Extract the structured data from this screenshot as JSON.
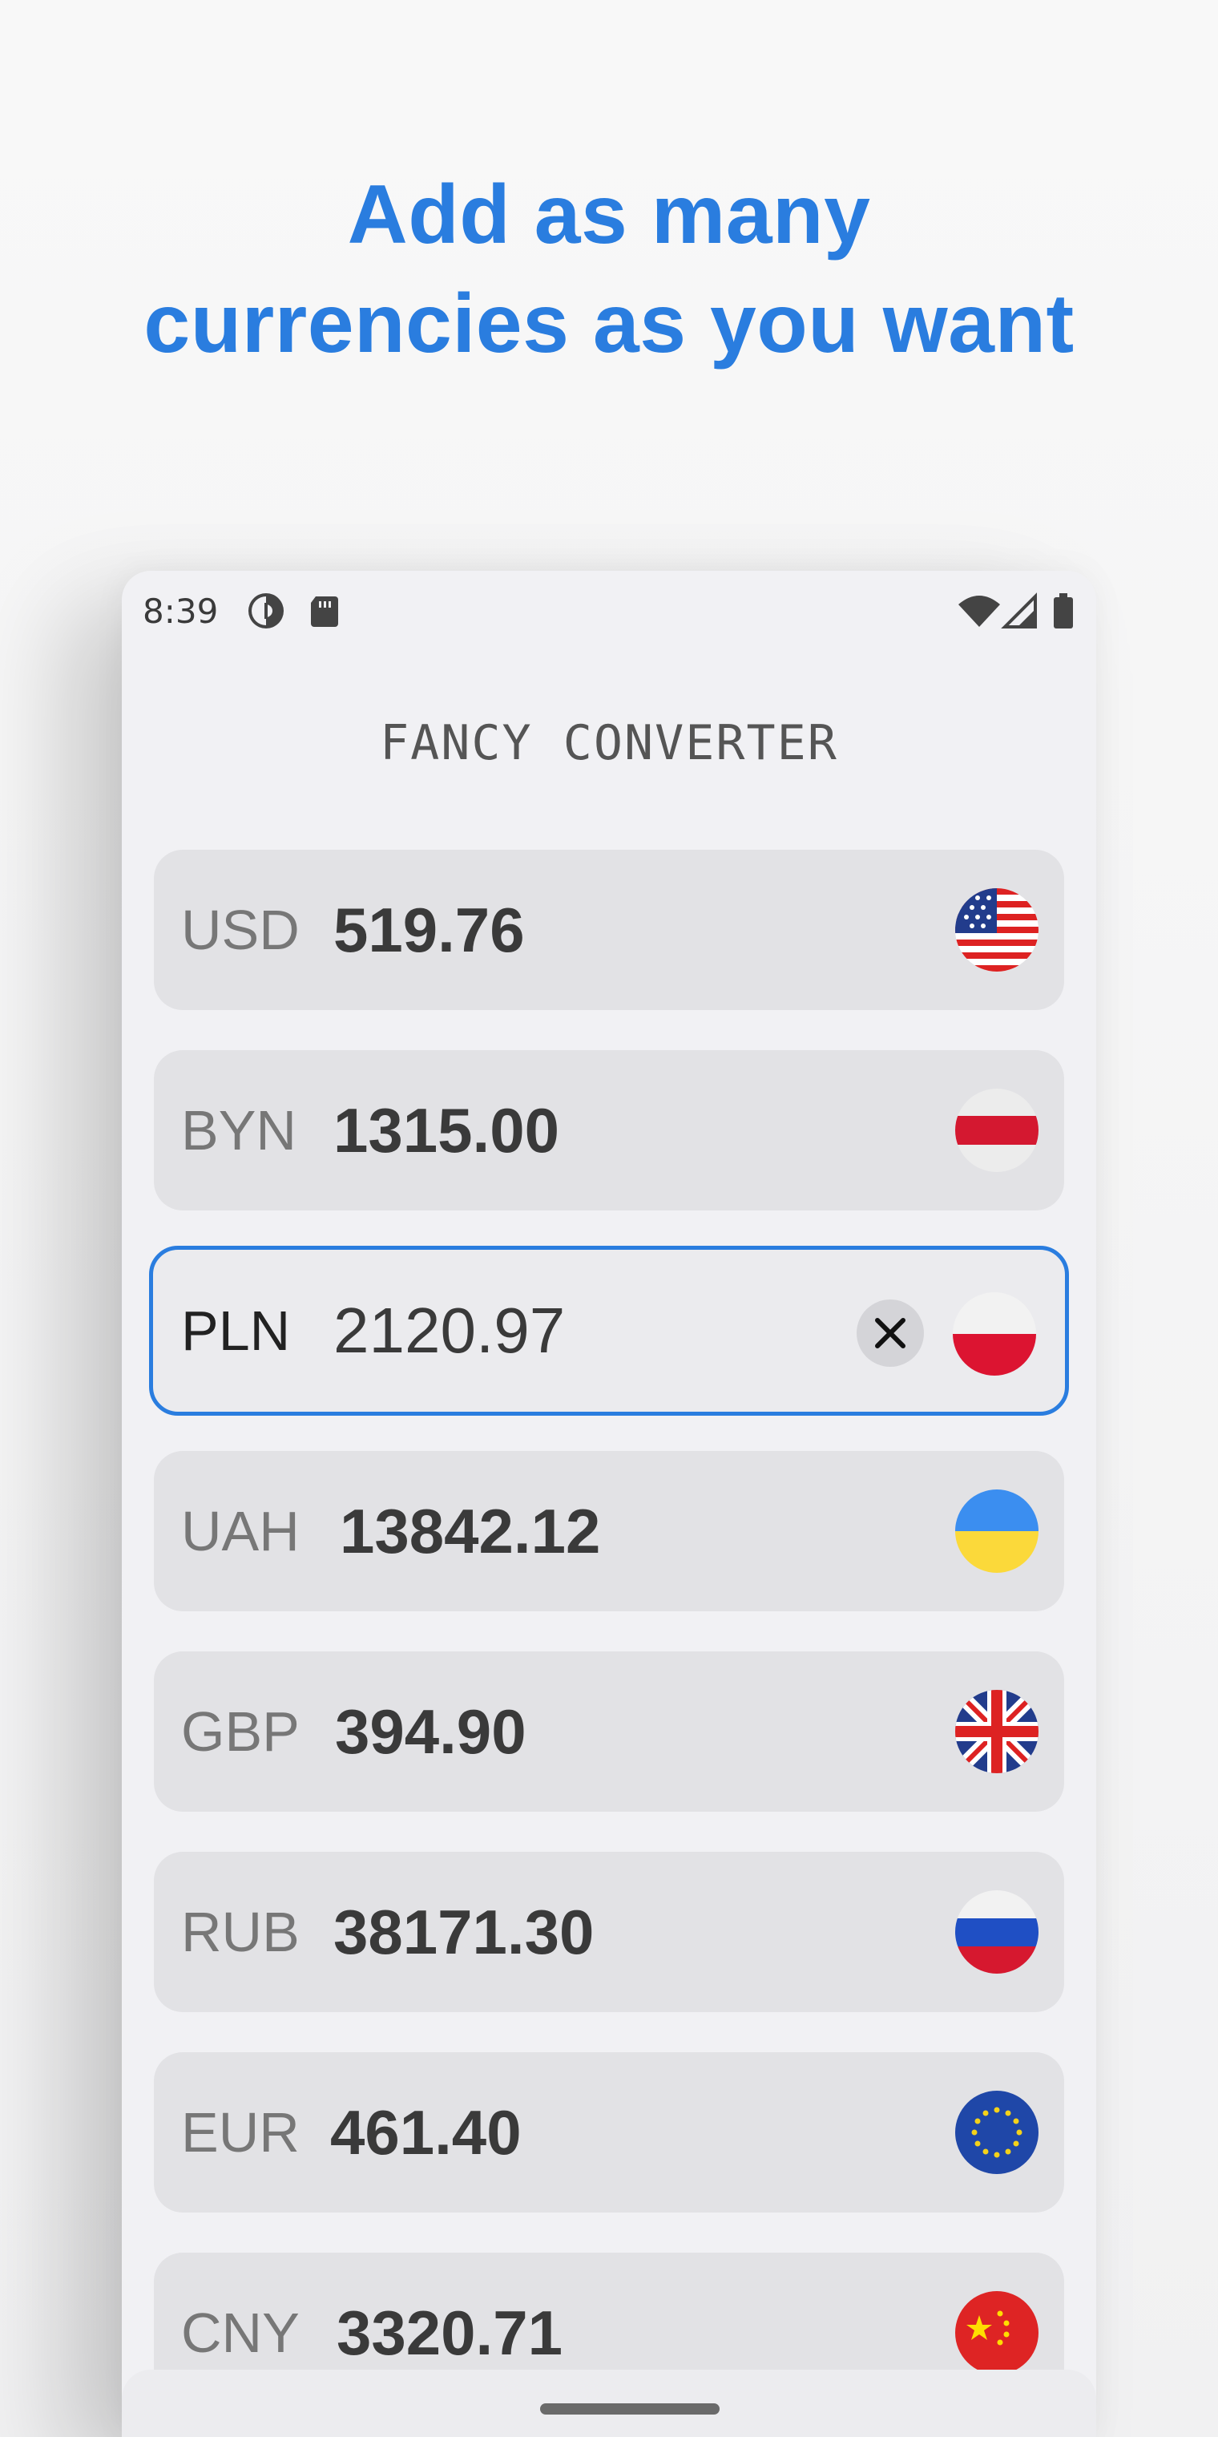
{
  "headline": {
    "line1": "Add as many",
    "line2": "currencies as you want"
  },
  "status_bar": {
    "time": "8:39",
    "left_icons": [
      "data-saver-icon",
      "sd-card-icon"
    ],
    "right_icons": [
      "wifi-icon",
      "cell-signal-icon",
      "battery-icon"
    ]
  },
  "app": {
    "title": "FANCY CONVERTER"
  },
  "currencies": [
    {
      "code": "USD",
      "amount": "519.76",
      "flag": "us-flag-icon"
    },
    {
      "code": "BYN",
      "amount": "1315.00",
      "flag": "belarus-flag-icon"
    },
    {
      "code": "PLN",
      "amount": "2120.97",
      "flag": "poland-flag-icon",
      "active": true
    },
    {
      "code": "UAH",
      "amount": "13842.12",
      "flag": "ukraine-flag-icon"
    },
    {
      "code": "GBP",
      "amount": "394.90",
      "flag": "uk-flag-icon"
    },
    {
      "code": "RUB",
      "amount": "38171.30",
      "flag": "russia-flag-icon"
    },
    {
      "code": "EUR",
      "amount": "461.40",
      "flag": "eu-flag-icon"
    },
    {
      "code": "CNY",
      "amount": "3320.71",
      "flag": "china-flag-icon"
    }
  ],
  "colors": {
    "accent": "#2a7ddf",
    "row_bg": "#e2e2e5",
    "screen_bg": "#f1f1f4"
  }
}
